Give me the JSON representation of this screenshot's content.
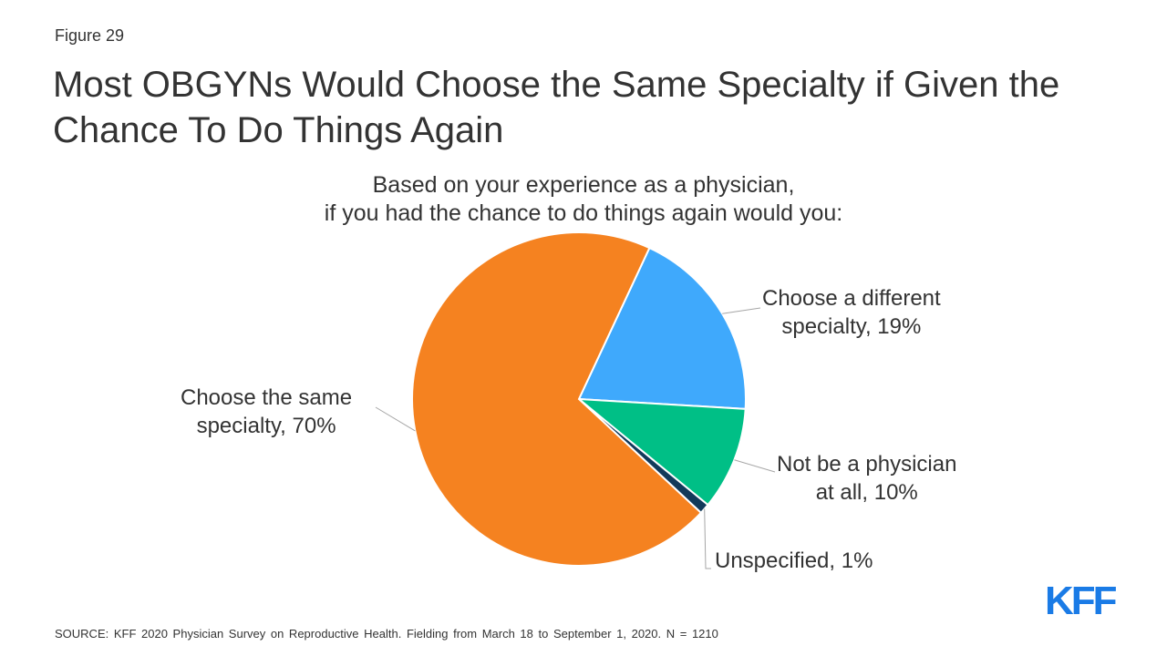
{
  "figure_label": "Figure 29",
  "title": "Most OBGYNs Would Choose the Same Specialty if Given the Chance To Do Things Again",
  "subtitle_lines": [
    "Based on your experience as a physician,",
    "if you had the chance to do things again would you:"
  ],
  "source": "SOURCE: KFF 2020 Physician Survey on Reproductive Health. Fielding from March 18 to September 1, 2020. N = 1210",
  "logo": "KFF",
  "chart_data": {
    "type": "pie",
    "title": "Based on your experience as a physician, if you had the chance to do things again would you:",
    "slices": [
      {
        "label": "Choose a different specialty, 19%",
        "label_lines": [
          "Choose a different",
          "specialty, 19%"
        ],
        "value": 19,
        "color": "#3fa9fc"
      },
      {
        "label": "Not be a physician at all, 10%",
        "label_lines": [
          "Not be a physician",
          "at all, 10%"
        ],
        "value": 10,
        "color": "#00bf86"
      },
      {
        "label": "Unspecified, 1%",
        "label_lines": [
          "Unspecified, 1%"
        ],
        "value": 1,
        "color": "#123a5a"
      },
      {
        "label": "Choose the same specialty, 70%",
        "label_lines": [
          "Choose the same",
          "specialty, 70%"
        ],
        "value": 70,
        "color": "#f58220"
      }
    ],
    "start_angle_note": "first slice starts at about 1 o'clock, clockwise",
    "legend": "none (direct labels with leader lines)"
  }
}
